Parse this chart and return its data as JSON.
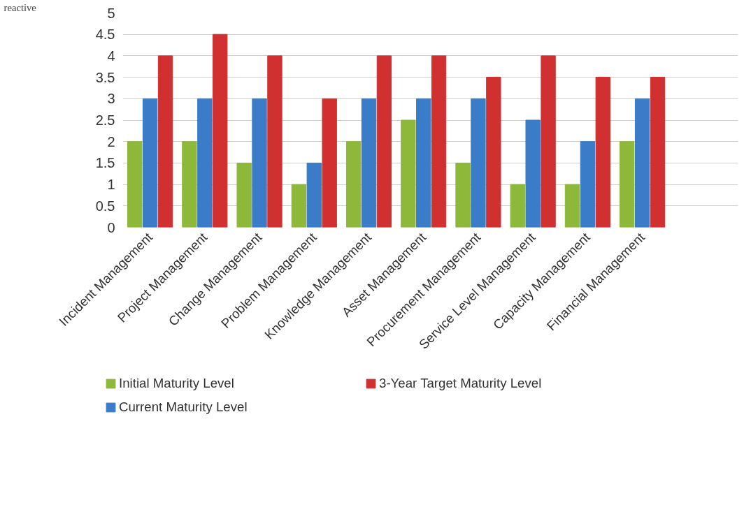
{
  "chart_data": {
    "type": "bar",
    "categories": [
      "Incident Management",
      "Project Management",
      "Change Management",
      "Problem Management",
      "Knowledge Management",
      "Asset Management",
      "Procurement Management",
      "Service Level Management",
      "Capacity Management",
      "Financial Management"
    ],
    "series": [
      {
        "name": "Initial Maturity Level",
        "color": "#8db83a",
        "values": [
          2,
          2,
          1.5,
          1,
          2,
          2.5,
          1.5,
          1,
          1,
          2
        ]
      },
      {
        "name": "Current Maturity Level",
        "color": "#3a7cc8",
        "values": [
          3,
          3,
          3,
          1.5,
          3,
          3,
          3,
          2.5,
          2,
          3
        ]
      },
      {
        "name": "3-Year Target Maturity Level",
        "color": "#d0302f",
        "values": [
          4,
          4.5,
          4,
          3,
          4,
          4,
          3.5,
          4,
          3.5,
          3.5
        ]
      }
    ],
    "ylim": [
      0,
      5
    ],
    "yticks": [
      0,
      0.5,
      1,
      1.5,
      2,
      2.5,
      3,
      3.5,
      4,
      4.5,
      5
    ],
    "grid": "y",
    "legend": "bottom",
    "annotations": [
      "reactive"
    ]
  }
}
